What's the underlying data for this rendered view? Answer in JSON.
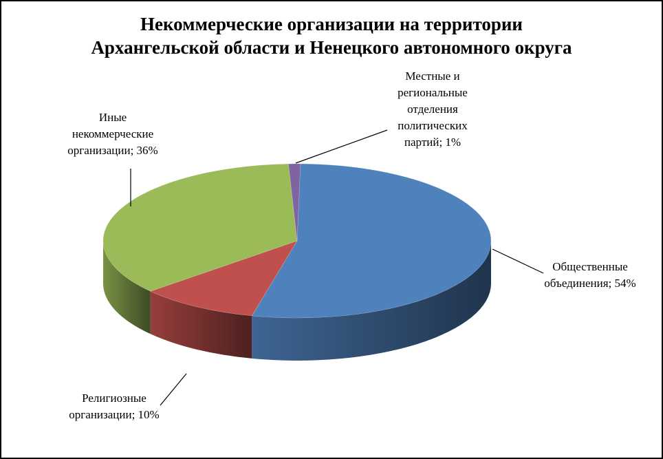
{
  "chart_data": {
    "type": "pie",
    "title_lines": [
      "Некоммерческие организации на территории",
      "Архангельской области и Ненецкого автономного округа"
    ],
    "slices": [
      {
        "name": "Общественные объединения",
        "value": 54,
        "color": "#4F81BD",
        "label_lines": [
          "Общественные",
          "объединения; 54%"
        ]
      },
      {
        "name": "Религиозные организации",
        "value": 10,
        "color": "#C0504D",
        "label_lines": [
          "Религиозные",
          "организации; 10%"
        ]
      },
      {
        "name": "Иные некоммерческие организации",
        "value": 36,
        "color": "#9BBB59",
        "label_lines": [
          "Иные",
          "некоммерческие",
          "организации; 36%"
        ]
      },
      {
        "name": "Местные и региональные отделения политических партий",
        "value": 1,
        "color": "#8064A2",
        "label_lines": [
          "Местные и",
          "региональные",
          "отделения",
          "политических",
          "партий; 1%"
        ]
      }
    ],
    "legend": "none"
  }
}
